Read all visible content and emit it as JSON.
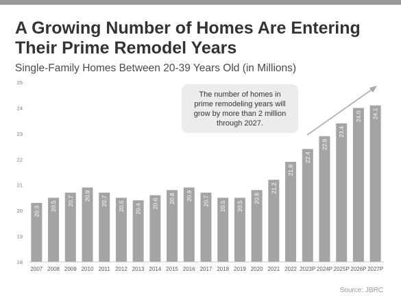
{
  "title": "A Growing Number of Homes Are Entering Their Prime Remodel Years",
  "subtitle": "Single-Family Homes Between 20-39 Years Old (in Millions)",
  "source": "Source: JBRC",
  "callout": "The number of homes in prime remodeling  years will grow by more than 2 million through 2027.",
  "colors": {
    "bar": "#a4a4a4",
    "axis": "#c8c8c8",
    "callout_bg": "#ececec",
    "arrow": "#a8a8a8",
    "top_bar": "#9a9a9a"
  },
  "chart_data": {
    "type": "bar",
    "title": "",
    "xlabel": "",
    "ylabel": "",
    "ylim": [
      18,
      25
    ],
    "yticks": [
      18,
      19,
      20,
      21,
      22,
      23,
      24,
      25
    ],
    "grid": false,
    "categories": [
      "2007",
      "2008",
      "2009",
      "2010",
      "2011",
      "2012",
      "2013",
      "2014",
      "2015",
      "2016",
      "2017",
      "2018",
      "2019",
      "2020",
      "2021",
      "2022",
      "2023P",
      "2024P",
      "2025P",
      "2026P",
      "2027P"
    ],
    "values": [
      20.3,
      20.5,
      20.7,
      20.9,
      20.7,
      20.5,
      20.4,
      20.6,
      20.8,
      20.9,
      20.7,
      20.5,
      20.5,
      20.8,
      21.2,
      21.9,
      22.4,
      22.9,
      23.4,
      24.0,
      24.1
    ],
    "value_labels": [
      "20.3",
      "20.5",
      "20.7",
      "20.9",
      "20.7",
      "20.5",
      "20.4",
      "20.6",
      "20.8",
      "20.9",
      "20.7",
      "20.5",
      "20.5",
      "20.8",
      "21.2",
      "21.9",
      "22.4",
      "22.9",
      "23.4",
      "24.0",
      "24.1"
    ]
  }
}
